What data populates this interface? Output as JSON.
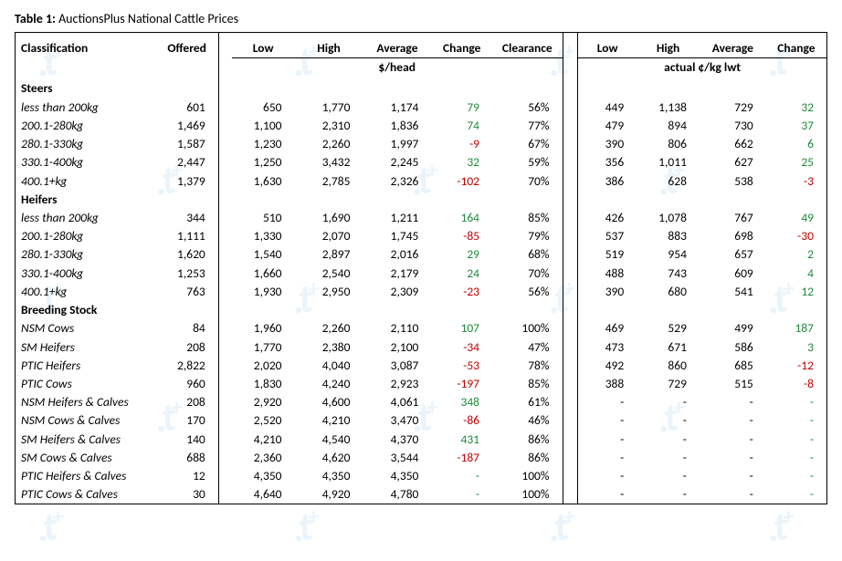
{
  "caption_prefix": "Table 1:",
  "caption_text": "AuctionsPlus National Cattle Prices",
  "headers": {
    "classification": "Classification",
    "offered": "Offered",
    "low": "Low",
    "high": "High",
    "average": "Average",
    "change": "Change",
    "clearance": "Clearance",
    "sub_head": "$/head",
    "sub_kg": "actual ¢/kg lwt"
  },
  "sections": [
    {
      "name": "Steers",
      "rows": [
        {
          "label": "less than 200kg",
          "offered": "601",
          "low1": "650",
          "high1": "1,770",
          "avg1": "1,174",
          "chg1": "79",
          "chg1_dir": "pos",
          "clr": "56%",
          "low2": "449",
          "high2": "1,138",
          "avg2": "729",
          "chg2": "32",
          "chg2_dir": "pos"
        },
        {
          "label": "200.1-280kg",
          "offered": "1,469",
          "low1": "1,100",
          "high1": "2,310",
          "avg1": "1,836",
          "chg1": "74",
          "chg1_dir": "pos",
          "clr": "77%",
          "low2": "479",
          "high2": "894",
          "avg2": "730",
          "chg2": "37",
          "chg2_dir": "pos"
        },
        {
          "label": "280.1-330kg",
          "offered": "1,587",
          "low1": "1,230",
          "high1": "2,260",
          "avg1": "1,997",
          "chg1": "-9",
          "chg1_dir": "neg",
          "clr": "67%",
          "low2": "390",
          "high2": "806",
          "avg2": "662",
          "chg2": "6",
          "chg2_dir": "pos"
        },
        {
          "label": "330.1-400kg",
          "offered": "2,447",
          "low1": "1,250",
          "high1": "3,432",
          "avg1": "2,245",
          "chg1": "32",
          "chg1_dir": "pos",
          "clr": "59%",
          "low2": "356",
          "high2": "1,011",
          "avg2": "627",
          "chg2": "25",
          "chg2_dir": "pos"
        },
        {
          "label": "400.1+kg",
          "offered": "1,379",
          "low1": "1,630",
          "high1": "2,785",
          "avg1": "2,326",
          "chg1": "-102",
          "chg1_dir": "neg",
          "clr": "70%",
          "low2": "386",
          "high2": "628",
          "avg2": "538",
          "chg2": "-3",
          "chg2_dir": "neg"
        }
      ]
    },
    {
      "name": "Heifers",
      "rows": [
        {
          "label": "less than 200kg",
          "offered": "344",
          "low1": "510",
          "high1": "1,690",
          "avg1": "1,211",
          "chg1": "164",
          "chg1_dir": "pos",
          "clr": "85%",
          "low2": "426",
          "high2": "1,078",
          "avg2": "767",
          "chg2": "49",
          "chg2_dir": "pos"
        },
        {
          "label": "200.1-280kg",
          "offered": "1,111",
          "low1": "1,330",
          "high1": "2,070",
          "avg1": "1,745",
          "chg1": "-85",
          "chg1_dir": "neg",
          "clr": "79%",
          "low2": "537",
          "high2": "883",
          "avg2": "698",
          "chg2": "-30",
          "chg2_dir": "neg"
        },
        {
          "label": "280.1-330kg",
          "offered": "1,620",
          "low1": "1,540",
          "high1": "2,897",
          "avg1": "2,016",
          "chg1": "29",
          "chg1_dir": "pos",
          "clr": "68%",
          "low2": "519",
          "high2": "954",
          "avg2": "657",
          "chg2": "2",
          "chg2_dir": "pos"
        },
        {
          "label": "330.1-400kg",
          "offered": "1,253",
          "low1": "1,660",
          "high1": "2,540",
          "avg1": "2,179",
          "chg1": "24",
          "chg1_dir": "pos",
          "clr": "70%",
          "low2": "488",
          "high2": "743",
          "avg2": "609",
          "chg2": "4",
          "chg2_dir": "pos"
        },
        {
          "label": "400.1+kg",
          "offered": "763",
          "low1": "1,930",
          "high1": "2,950",
          "avg1": "2,309",
          "chg1": "-23",
          "chg1_dir": "neg",
          "clr": "56%",
          "low2": "390",
          "high2": "680",
          "avg2": "541",
          "chg2": "12",
          "chg2_dir": "pos"
        }
      ]
    },
    {
      "name": "Breeding Stock",
      "rows": [
        {
          "label": "NSM Cows",
          "offered": "84",
          "low1": "1,960",
          "high1": "2,260",
          "avg1": "2,110",
          "chg1": "107",
          "chg1_dir": "pos",
          "clr": "100%",
          "low2": "469",
          "high2": "529",
          "avg2": "499",
          "chg2": "187",
          "chg2_dir": "pos"
        },
        {
          "label": "SM Heifers",
          "offered": "208",
          "low1": "1,770",
          "high1": "2,380",
          "avg1": "2,100",
          "chg1": "-34",
          "chg1_dir": "neg",
          "clr": "47%",
          "low2": "473",
          "high2": "671",
          "avg2": "586",
          "chg2": "3",
          "chg2_dir": "pos"
        },
        {
          "label": "PTIC Heifers",
          "offered": "2,822",
          "low1": "2,020",
          "high1": "4,040",
          "avg1": "3,087",
          "chg1": "-53",
          "chg1_dir": "neg",
          "clr": "78%",
          "low2": "492",
          "high2": "860",
          "avg2": "685",
          "chg2": "-12",
          "chg2_dir": "neg"
        },
        {
          "label": "PTIC Cows",
          "offered": "960",
          "low1": "1,830",
          "high1": "4,240",
          "avg1": "2,923",
          "chg1": "-197",
          "chg1_dir": "neg",
          "clr": "85%",
          "low2": "388",
          "high2": "729",
          "avg2": "515",
          "chg2": "-8",
          "chg2_dir": "neg"
        },
        {
          "label": "NSM Heifers & Calves",
          "offered": "208",
          "low1": "2,920",
          "high1": "4,600",
          "avg1": "4,061",
          "chg1": "348",
          "chg1_dir": "pos",
          "clr": "61%",
          "low2": "-",
          "high2": "-",
          "avg2": "-",
          "chg2": "-",
          "chg2_dir": "pos"
        },
        {
          "label": "NSM Cows & Calves",
          "offered": "170",
          "low1": "2,520",
          "high1": "4,210",
          "avg1": "3,470",
          "chg1": "-86",
          "chg1_dir": "neg",
          "clr": "46%",
          "low2": "-",
          "high2": "-",
          "avg2": "-",
          "chg2": "-",
          "chg2_dir": "pos"
        },
        {
          "label": "SM Heifers & Calves",
          "offered": "140",
          "low1": "4,210",
          "high1": "4,540",
          "avg1": "4,370",
          "chg1": "431",
          "chg1_dir": "pos",
          "clr": "86%",
          "low2": "-",
          "high2": "-",
          "avg2": "-",
          "chg2": "-",
          "chg2_dir": "pos"
        },
        {
          "label": "SM Cows & Calves",
          "offered": "688",
          "low1": "2,360",
          "high1": "4,620",
          "avg1": "3,544",
          "chg1": "-187",
          "chg1_dir": "neg",
          "clr": "86%",
          "low2": "-",
          "high2": "-",
          "avg2": "-",
          "chg2": "-",
          "chg2_dir": "pos"
        },
        {
          "label": "PTIC Heifers & Calves",
          "offered": "12",
          "low1": "4,350",
          "high1": "4,350",
          "avg1": "4,350",
          "chg1": "-",
          "chg1_dir": "pos",
          "clr": "100%",
          "low2": "-",
          "high2": "-",
          "avg2": "-",
          "chg2": "-",
          "chg2_dir": "pos"
        },
        {
          "label": "PTIC Cows & Calves",
          "offered": "30",
          "low1": "4,640",
          "high1": "4,920",
          "avg1": "4,780",
          "chg1": "-",
          "chg1_dir": "pos",
          "clr": "100%",
          "low2": "-",
          "high2": "-",
          "avg2": "-",
          "chg2": "-",
          "chg2_dir": "pos"
        }
      ]
    }
  ],
  "colors": {
    "pos": "#1f8a3b",
    "neg": "#c00000",
    "text": "#000000",
    "watermark": "#d9ecf7"
  },
  "watermark_glyph": ".t+"
}
